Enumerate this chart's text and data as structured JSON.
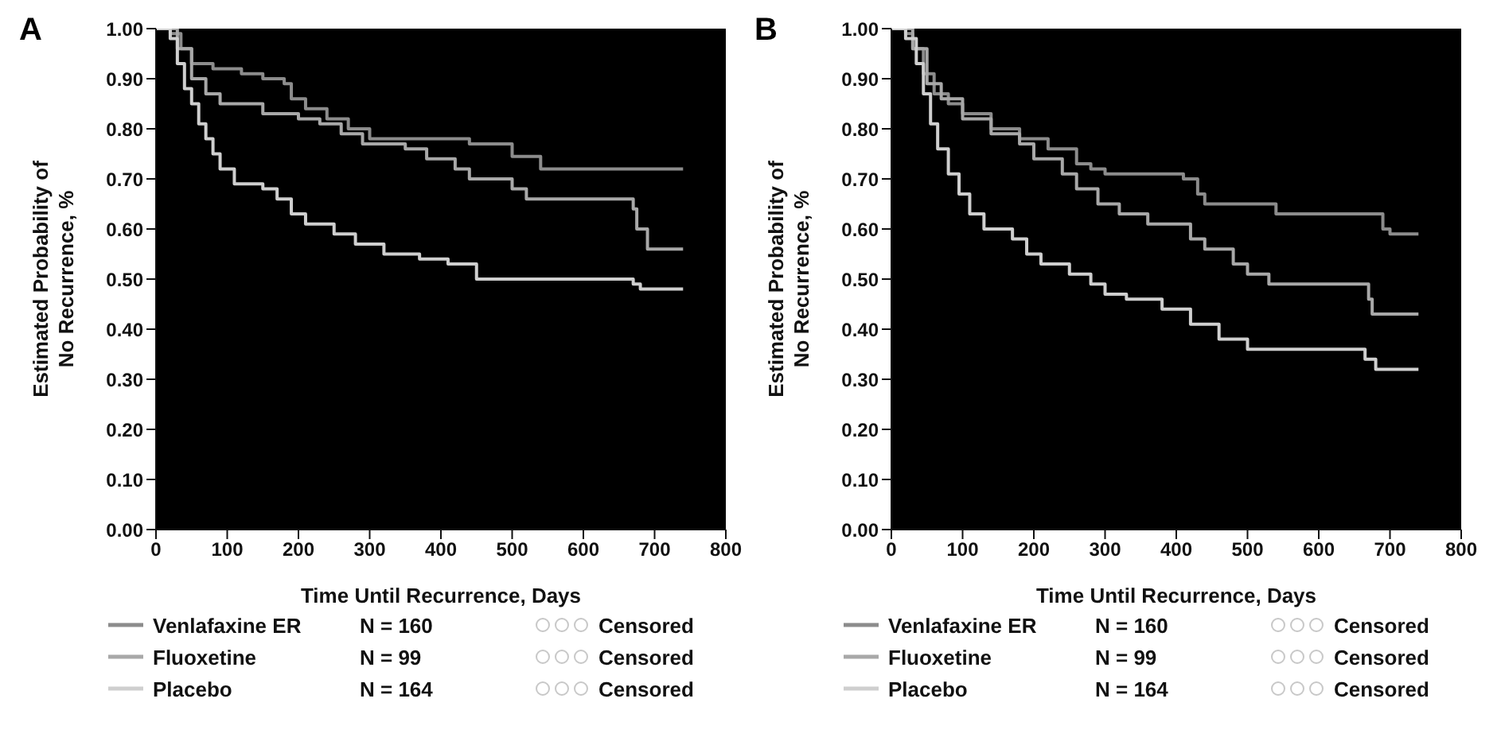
{
  "chart_data": [
    {
      "type": "step",
      "title": "A",
      "xlabel": "Time Until Recurrence, Days",
      "ylabel": "Estimated Probability of\nNo Recurrence, %",
      "xlim": [
        0,
        800
      ],
      "xticks": [
        0,
        100,
        200,
        300,
        400,
        500,
        600,
        700,
        800
      ],
      "ylim": [
        0,
        1
      ],
      "yticks": [
        {
          "value": 0,
          "label": "0.00"
        },
        {
          "value": 0.1,
          "label": "0.10"
        },
        {
          "value": 0.2,
          "label": "0.20"
        },
        {
          "value": 0.3,
          "label": "0.30"
        },
        {
          "value": 0.4,
          "label": "0.40"
        },
        {
          "value": 0.5,
          "label": "0.50"
        },
        {
          "value": 0.6,
          "label": "0.60"
        },
        {
          "value": 0.7,
          "label": "0.70"
        },
        {
          "value": 0.8,
          "label": "0.80"
        },
        {
          "value": 0.9,
          "label": "0.90"
        },
        {
          "value": 1,
          "label": "1.00"
        }
      ],
      "grid": false,
      "legend": "bottom",
      "marker": "none",
      "annotations": [
        "N = 160",
        "N = 99",
        "N = 164",
        "Censored",
        "Censored",
        "Censored"
      ],
      "series": [
        {
          "name": "Venlafaxine ER",
          "color": "#8c8c8c",
          "x": [
            0,
            20,
            35,
            50,
            80,
            120,
            150,
            180,
            190,
            210,
            240,
            270,
            300,
            440,
            500,
            540,
            740
          ],
          "values": [
            1.0,
            0.99,
            0.96,
            0.93,
            0.92,
            0.91,
            0.9,
            0.89,
            0.86,
            0.84,
            0.82,
            0.8,
            0.78,
            0.77,
            0.745,
            0.72,
            0.72
          ]
        },
        {
          "name": "Fluoxetine",
          "color": "#a8a8a8",
          "x": [
            0,
            30,
            50,
            70,
            90,
            150,
            200,
            230,
            260,
            290,
            350,
            380,
            420,
            440,
            500,
            520,
            670,
            675,
            690,
            740
          ],
          "values": [
            1.0,
            0.96,
            0.9,
            0.87,
            0.85,
            0.83,
            0.82,
            0.81,
            0.79,
            0.77,
            0.76,
            0.74,
            0.72,
            0.7,
            0.68,
            0.66,
            0.64,
            0.6,
            0.56,
            0.56
          ]
        },
        {
          "name": "Placebo",
          "color": "#cfcfcf",
          "x": [
            0,
            20,
            30,
            40,
            50,
            60,
            70,
            80,
            90,
            110,
            150,
            170,
            190,
            210,
            250,
            280,
            320,
            370,
            410,
            450,
            670,
            680,
            740
          ],
          "values": [
            1.0,
            0.98,
            0.93,
            0.88,
            0.85,
            0.81,
            0.78,
            0.75,
            0.72,
            0.69,
            0.68,
            0.66,
            0.63,
            0.61,
            0.59,
            0.57,
            0.55,
            0.54,
            0.53,
            0.5,
            0.49,
            0.48,
            0.48
          ]
        }
      ]
    },
    {
      "type": "step",
      "title": "B",
      "xlabel": "Time Until Recurrence, Days",
      "ylabel": "Estimated Probability of\nNo Recurrence, %",
      "xlim": [
        0,
        800
      ],
      "xticks": [
        0,
        100,
        200,
        300,
        400,
        500,
        600,
        700,
        800
      ],
      "ylim": [
        0,
        1
      ],
      "yticks": [
        {
          "value": 0,
          "label": "0.00"
        },
        {
          "value": 0.1,
          "label": "0.10"
        },
        {
          "value": 0.2,
          "label": "0.20"
        },
        {
          "value": 0.3,
          "label": "0.30"
        },
        {
          "value": 0.4,
          "label": "0.40"
        },
        {
          "value": 0.5,
          "label": "0.50"
        },
        {
          "value": 0.6,
          "label": "0.60"
        },
        {
          "value": 0.7,
          "label": "0.70"
        },
        {
          "value": 0.8,
          "label": "0.80"
        },
        {
          "value": 0.9,
          "label": "0.90"
        },
        {
          "value": 1,
          "label": "1.00"
        }
      ],
      "grid": false,
      "legend": "bottom",
      "marker": "none",
      "annotations": [
        "N = 160",
        "N = 99",
        "N = 164",
        "Censored",
        "Censored",
        "Censored"
      ],
      "series": [
        {
          "name": "Venlafaxine ER",
          "color": "#8c8c8c",
          "x": [
            0,
            20,
            30,
            45,
            60,
            80,
            100,
            140,
            180,
            220,
            260,
            280,
            300,
            410,
            430,
            440,
            540,
            690,
            700,
            740
          ],
          "values": [
            1.0,
            0.99,
            0.96,
            0.91,
            0.87,
            0.85,
            0.83,
            0.8,
            0.78,
            0.76,
            0.73,
            0.72,
            0.71,
            0.7,
            0.67,
            0.65,
            0.63,
            0.6,
            0.59,
            0.59
          ]
        },
        {
          "name": "Fluoxetine",
          "color": "#a8a8a8",
          "x": [
            0,
            30,
            50,
            70,
            100,
            140,
            180,
            200,
            240,
            260,
            290,
            320,
            360,
            420,
            440,
            480,
            500,
            530,
            670,
            675,
            740
          ],
          "values": [
            1.0,
            0.96,
            0.89,
            0.86,
            0.82,
            0.79,
            0.77,
            0.74,
            0.71,
            0.68,
            0.65,
            0.63,
            0.61,
            0.58,
            0.56,
            0.53,
            0.51,
            0.49,
            0.46,
            0.43,
            0.43
          ]
        },
        {
          "name": "Placebo",
          "color": "#cfcfcf",
          "x": [
            0,
            20,
            35,
            45,
            55,
            65,
            80,
            95,
            110,
            130,
            170,
            190,
            210,
            250,
            280,
            300,
            330,
            380,
            420,
            460,
            500,
            665,
            680,
            740
          ],
          "values": [
            1.0,
            0.98,
            0.93,
            0.87,
            0.81,
            0.76,
            0.71,
            0.67,
            0.63,
            0.6,
            0.58,
            0.55,
            0.53,
            0.51,
            0.49,
            0.47,
            0.46,
            0.44,
            0.41,
            0.38,
            0.36,
            0.34,
            0.32,
            0.32
          ]
        }
      ]
    }
  ]
}
